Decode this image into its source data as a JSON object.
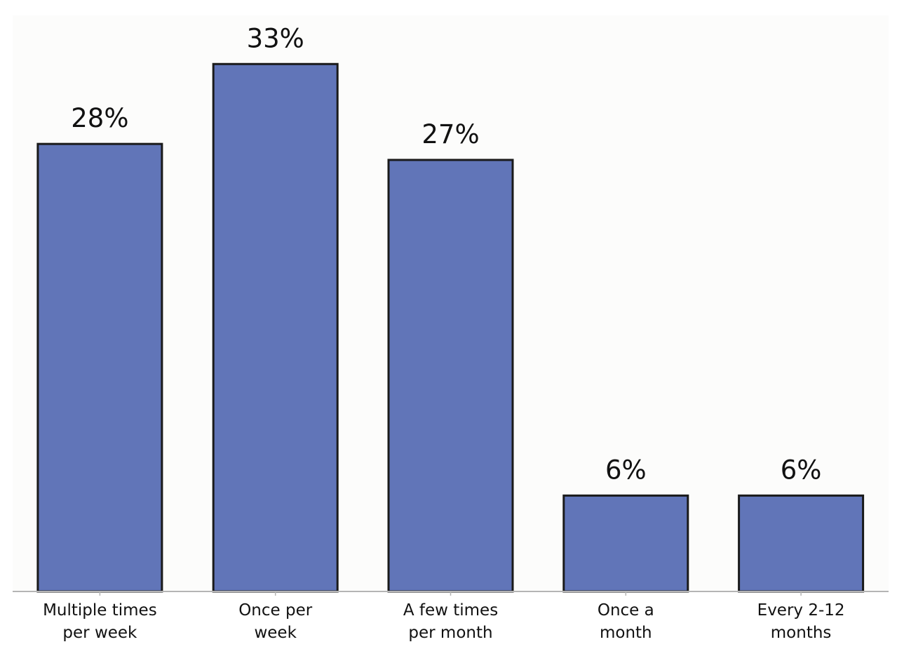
{
  "chart_data": {
    "type": "bar",
    "categories": [
      [
        "Multiple times",
        "per week"
      ],
      [
        "Once per",
        "week"
      ],
      [
        "A few times",
        "per month"
      ],
      [
        "Once a",
        "month"
      ],
      [
        "Every 2-12",
        "months"
      ]
    ],
    "values": [
      28,
      33,
      27,
      6,
      6
    ],
    "value_labels": [
      "28%",
      "33%",
      "27%",
      "6%",
      "6%"
    ],
    "ylim": [
      0,
      36.5
    ],
    "grid": false,
    "legend": "none",
    "colors": {
      "bar_fill": "#6175b8",
      "bar_stroke": "#1a1a1a",
      "plot_background": "#fcfcfb",
      "axis": "#b5b5b5"
    }
  }
}
